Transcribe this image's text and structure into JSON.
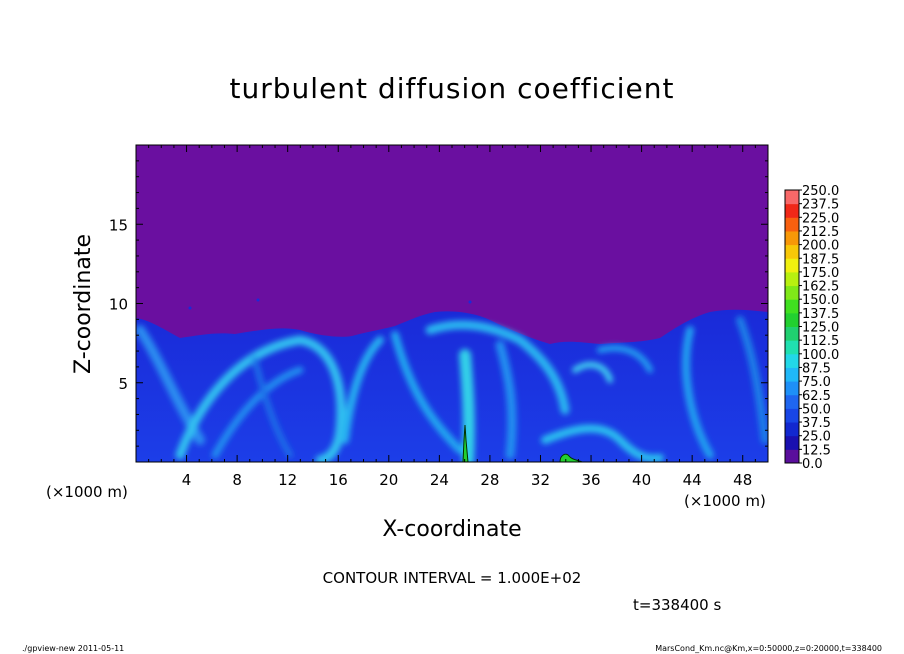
{
  "chart_data": {
    "type": "heatmap",
    "title": "turbulent diffusion coefficient",
    "xlabel": "X-coordinate",
    "ylabel": "Z-coordinate",
    "x_unit": "(×1000 m)",
    "y_unit": "(×1000 m)",
    "xlim": [
      0,
      50
    ],
    "ylim": [
      0,
      20
    ],
    "x_ticks": [
      4,
      8,
      12,
      16,
      20,
      24,
      28,
      32,
      36,
      40,
      44,
      48
    ],
    "x_tick_labels": [
      "4",
      "8",
      "12",
      "16",
      "20",
      "24",
      "28",
      "32",
      "36",
      "40",
      "44",
      "48"
    ],
    "y_ticks": [
      5,
      10,
      15
    ],
    "y_tick_labels": [
      "5",
      "10",
      "15"
    ],
    "colorbar": {
      "levels": [
        0.0,
        12.5,
        25.0,
        37.5,
        50.0,
        62.5,
        75.0,
        87.5,
        100.0,
        112.5,
        125.0,
        137.5,
        150.0,
        162.5,
        175.0,
        187.5,
        200.0,
        212.5,
        225.0,
        237.5,
        250.0
      ],
      "labels": [
        "0.0",
        "12.5",
        "25.0",
        "37.5",
        "50.0",
        "62.5",
        "75.0",
        "87.5",
        "100.0",
        "112.5",
        "125.0",
        "137.5",
        "150.0",
        "162.5",
        "175.0",
        "187.5",
        "200.0",
        "212.5",
        "225.0",
        "237.5",
        "250.0"
      ],
      "colors": [
        "#5a0f9c",
        "#1a10b0",
        "#1228d0",
        "#1846e6",
        "#1f66f0",
        "#1e90f8",
        "#20b8f8",
        "#22d8e8",
        "#20e0b0",
        "#20d070",
        "#22d030",
        "#40e020",
        "#80e818",
        "#b8f010",
        "#f0f010",
        "#f8c808",
        "#f89808",
        "#f86010",
        "#f02818",
        "#f86868"
      ]
    },
    "background_value_color": "#6a0fa0",
    "contour_interval_text": "CONTOUR INTERVAL = 1.000E+02",
    "time_text": "t=338400 s"
  },
  "footer": {
    "left": "./gpview-new   2011-05-11",
    "right": "MarsCond_Km.nc@Km,x=0:50000,z=0:20000,t=338400"
  }
}
